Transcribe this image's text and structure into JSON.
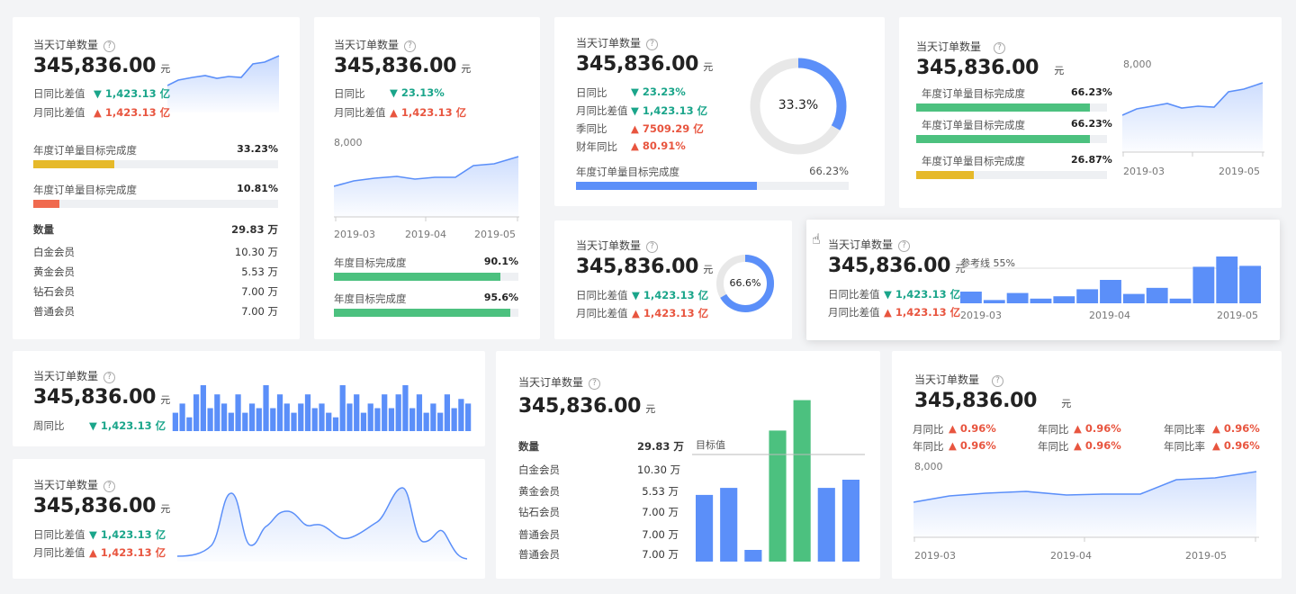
{
  "common": {
    "title": "当天订单数量",
    "amount": "345,836.00",
    "unit": "元",
    "help": "?"
  },
  "card1": {
    "m1_label": "日同比差值",
    "m1_val": "▼ 1,423.13 亿",
    "m2_label": "月同比差值",
    "m2_val": "▲ 1,423.13 亿",
    "spark": [
      62,
      63.5,
      64.2,
      64.8,
      63.9,
      64.5,
      64.4,
      68.2,
      68.8,
      71
    ],
    "p1_label": "年度订单量目标完成度",
    "p1_val": "33.23%",
    "p1": 0.3323,
    "p2_label": "年度订单量目标完成度",
    "p2_val": "10.81%",
    "p2": 0.1081,
    "table_head": [
      "数量",
      "29.83 万"
    ],
    "rows": [
      [
        "白金会员",
        "10.30 万"
      ],
      [
        "黄金会员",
        "5.53 万"
      ],
      [
        "钻石会员",
        "7.00 万"
      ],
      [
        "普通会员",
        "7.00 万"
      ]
    ]
  },
  "card2": {
    "m1_label": "日同比",
    "m1_val": "▼ 23.13%",
    "m2_label": "月同比差值",
    "m2_val": "▲ 1,423.13 亿",
    "ytick": "8,000",
    "xticks": [
      "2019-03",
      "2019-04",
      "2019-05"
    ],
    "p1_label": "年度目标完成度",
    "p1_val": "90.1%",
    "p1": 0.901,
    "p2_label": "年度目标完成度",
    "p2_val": "95.6%",
    "p2": 0.956
  },
  "card3": {
    "m1_label": "日同比",
    "m1_val": "▼ 23.23%",
    "m2_label": "月同比差值",
    "m2_val": "▼ 1,423.13 亿",
    "m3_label": "季同比",
    "m3_val": "▲ 7509.29 亿",
    "m4_label": "财年同比",
    "m4_val": "▲ 80.91%",
    "donut_label": "33.3%",
    "donut": 0.333,
    "p1_label": "年度订单量目标完成度",
    "p1_val": "66.23%",
    "p1": 0.6623
  },
  "card4": {
    "p1_label": "年度订单量目标完成度",
    "p1_val": "66.23%",
    "p1": 0.6623,
    "p2_label": "年度订单量目标完成度",
    "p2_val": "66.23%",
    "p2": 0.6623,
    "p3_label": "年度订单量目标完成度",
    "p3_val": "26.87%",
    "p3": 0.2687,
    "ytick": "8,000",
    "xticks": [
      "2019-03",
      "2019-05"
    ]
  },
  "card5": {
    "m1_label": "日同比差值",
    "m1_val": "▼ 1,423.13 亿",
    "m2_label": "月同比差值",
    "m2_val": "▲ 1,423.13 亿",
    "donut_label": "66.6%",
    "donut": 0.666
  },
  "card6": {
    "m1_label": "日同比差值",
    "m1_val": "▼ 1,423.13 亿",
    "m2_label": "月同比差值",
    "m2_val": "▲ 1,423.13 亿",
    "ref_label": "参考线 55%",
    "xticks": [
      "2019-03",
      "2019-04",
      "2019-05"
    ],
    "bars": [
      0.25,
      0.07,
      0.22,
      0.1,
      0.15,
      0.3,
      0.5,
      0.2,
      0.33,
      0.1,
      0.78,
      1.0,
      0.8
    ]
  },
  "card7": {
    "m1_label": "周同比",
    "m1_val": "▼ 1,423.13 亿",
    "bars": [
      0.4,
      0.6,
      0.3,
      0.8,
      1.0,
      0.5,
      0.8,
      0.6,
      0.4,
      0.8,
      0.4,
      0.6,
      0.5,
      1.0,
      0.5,
      0.8,
      0.6,
      0.4,
      0.6,
      0.8,
      0.5,
      0.6,
      0.4,
      0.3,
      1.0,
      0.6,
      0.8,
      0.4,
      0.6,
      0.5,
      0.8,
      0.5,
      0.8,
      1.0,
      0.5,
      0.8,
      0.4,
      0.6,
      0.4,
      0.8,
      0.5,
      0.7,
      0.6
    ]
  },
  "card8": {
    "m1_label": "日同比差值",
    "m1_val": "▼ 1,423.13 亿",
    "m2_label": "月同比差值",
    "m2_val": "▲ 1,423.13 亿"
  },
  "card9": {
    "table_head": [
      "数量",
      "29.83 万"
    ],
    "rows": [
      [
        "白金会员",
        "10.30 万"
      ],
      [
        "黄金会员",
        "5.53 万"
      ],
      [
        "钻石会员",
        "7.00 万"
      ],
      [
        "普通会员",
        "7.00 万"
      ],
      [
        "普通会员",
        "7.00 万"
      ]
    ],
    "target_label": "目标值",
    "bars": [
      0.57,
      0.63,
      0.1,
      1.12,
      1.38,
      0.63,
      0.7
    ],
    "bar_colors": [
      "#5b8ff9",
      "#5b8ff9",
      "#5b8ff9",
      "#4cc17f",
      "#4cc17f",
      "#5b8ff9",
      "#5b8ff9"
    ]
  },
  "card10": {
    "r1": [
      [
        "月同比",
        "▲ 0.96%"
      ],
      [
        "年同比",
        "▲ 0.96%"
      ],
      [
        "年同比率",
        "▲ 0.96%"
      ]
    ],
    "r2": [
      [
        "年同比",
        "▲ 0.96%"
      ],
      [
        "年同比",
        "▲ 0.96%"
      ],
      [
        "年同比率",
        "▲ 0.96%"
      ]
    ],
    "ytick": "8,000",
    "xticks": [
      "2019-03",
      "2019-04",
      "2019-05"
    ]
  },
  "colors": {
    "blue": "#5b8ff9",
    "green": "#4cc17f",
    "yellow": "#e6b92a",
    "red": "#f06a4f",
    "down": "#1aa58a",
    "up": "#e8553f"
  }
}
